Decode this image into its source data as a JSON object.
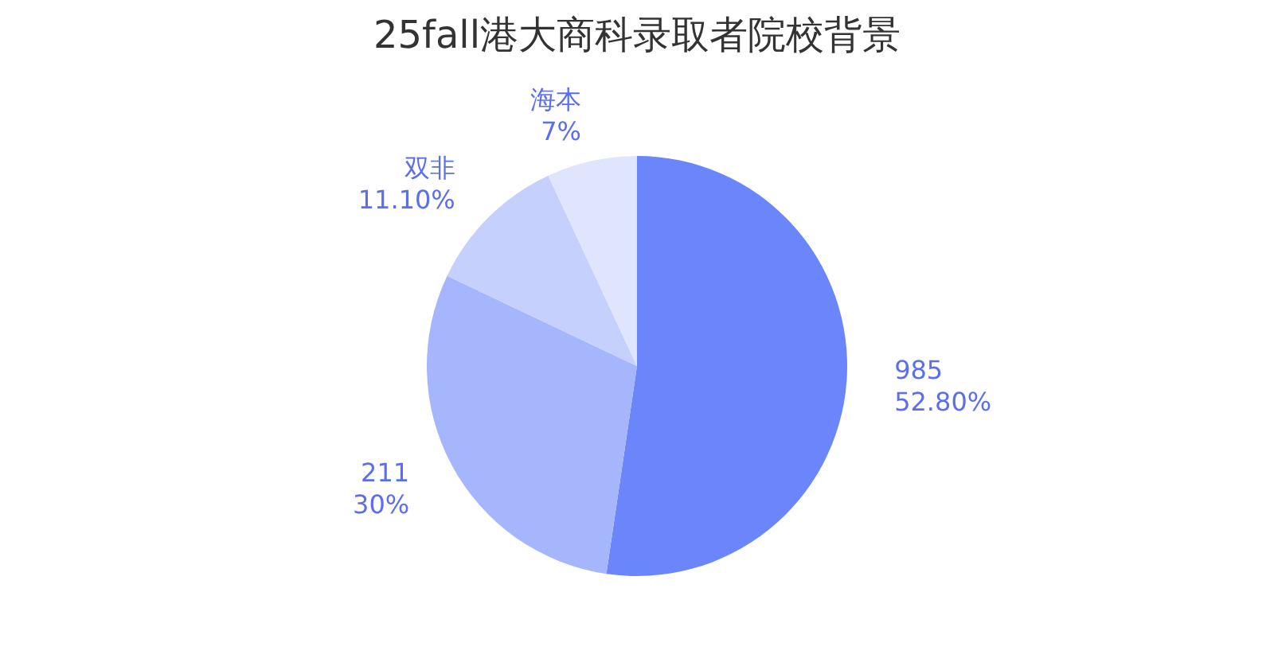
{
  "chart_data": {
    "type": "pie",
    "title": "25fall港大商科录取者院校背景",
    "categories": [
      "985",
      "211",
      "双非",
      "海本"
    ],
    "values": [
      52.8,
      30,
      11.1,
      7
    ],
    "value_labels": [
      "52.80%",
      "30%",
      "11.10%",
      "7%"
    ],
    "colors": [
      "#6b86fb",
      "#a6b6fd",
      "#c5d0fd",
      "#e0e5fe"
    ]
  }
}
